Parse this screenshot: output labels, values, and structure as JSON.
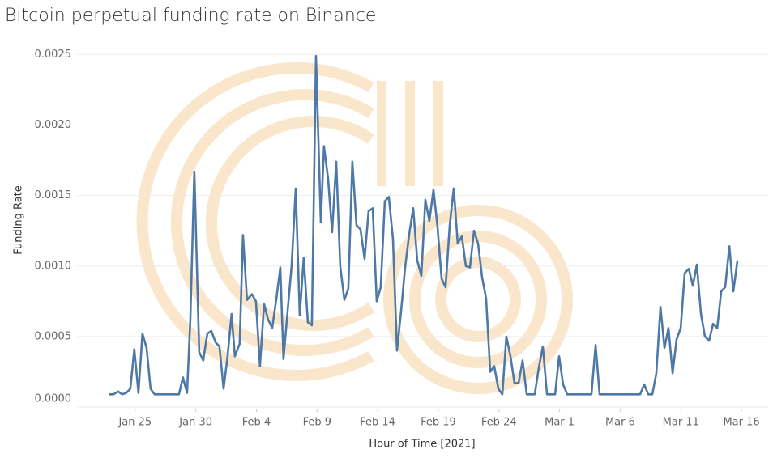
{
  "chart_data": {
    "type": "line",
    "title": "Bitcoin perpetual funding rate on Binance",
    "x_label": "Hour of Time [2021]",
    "y_label": "Funding Rate",
    "color": "#4e79a7",
    "grid": true,
    "xlim": [
      20.2,
      77.2
    ],
    "ylim": [
      0,
      0.0026
    ],
    "xticks": [
      {
        "value": 25,
        "label": "Jan 25"
      },
      {
        "value": 30,
        "label": "Jan 30"
      },
      {
        "value": 35,
        "label": "Feb 4"
      },
      {
        "value": 40,
        "label": "Feb 9"
      },
      {
        "value": 45,
        "label": "Feb 14"
      },
      {
        "value": 50,
        "label": "Feb 19"
      },
      {
        "value": 55,
        "label": "Feb 24"
      },
      {
        "value": 60,
        "label": "Mar 1"
      },
      {
        "value": 65,
        "label": "Mar 6"
      },
      {
        "value": 70,
        "label": "Mar 11"
      },
      {
        "value": 75,
        "label": "Mar 16"
      }
    ],
    "yticks": [
      {
        "value": 0,
        "label": "0.0000"
      },
      {
        "value": 0.0005,
        "label": "0.0005"
      },
      {
        "value": 0.001,
        "label": "0.0010"
      },
      {
        "value": 0.0015,
        "label": "0.0015"
      },
      {
        "value": 0.002,
        "label": "0.0020"
      },
      {
        "value": 0.0025,
        "label": "0.0025"
      }
    ],
    "x": [
      22.86,
      23.2,
      23.6,
      23.93,
      24.26,
      24.6,
      24.93,
      25.27,
      25.6,
      25.94,
      26.27,
      26.6,
      28.61,
      28.94,
      29.28,
      29.55,
      29.88,
      30.28,
      30.61,
      30.95,
      31.28,
      31.62,
      31.95,
      32.29,
      32.62,
      32.95,
      33.22,
      33.62,
      33.89,
      34.22,
      34.63,
      34.96,
      35.29,
      35.63,
      35.96,
      36.3,
      36.63,
      36.97,
      37.23,
      37.57,
      37.9,
      38.24,
      38.57,
      38.9,
      39.24,
      39.57,
      39.91,
      40.31,
      40.57,
      40.91,
      41.24,
      41.58,
      41.91,
      42.25,
      42.58,
      42.91,
      43.25,
      43.58,
      43.92,
      44.25,
      44.59,
      44.92,
      45.25,
      45.59,
      45.92,
      46.26,
      46.59,
      46.93,
      47.26,
      47.59,
      47.93,
      48.26,
      48.6,
      48.93,
      49.26,
      49.6,
      49.93,
      50.27,
      50.6,
      50.94,
      51.27,
      51.6,
      51.94,
      52.27,
      52.61,
      52.94,
      53.28,
      53.61,
      53.94,
      54.28,
      54.61,
      54.95,
      55.28,
      55.61,
      55.95,
      56.28,
      56.62,
      56.95,
      57.29,
      57.95,
      58.29,
      58.62,
      58.96,
      59.63,
      59.96,
      60.29,
      60.63,
      62.63,
      62.97,
      63.3,
      66.64,
      66.98,
      67.31,
      67.65,
      67.98,
      68.32,
      68.65,
      68.98,
      69.32,
      69.65,
      69.99,
      70.32,
      70.66,
      70.99,
      71.32,
      71.66,
      71.99,
      72.33,
      72.66,
      73,
      73.33,
      73.66,
      74,
      74.33,
      74.67
    ],
    "values": [
      9e-05,
      9e-05,
      0.00011,
      9e-05,
      0.0001,
      0.00013,
      0.00041,
      0.0001,
      0.00052,
      0.00042,
      0.00013,
      9e-05,
      9e-05,
      0.00021,
      0.0001,
      0.00062,
      0.00167,
      0.00039,
      0.00033,
      0.00052,
      0.00054,
      0.00046,
      0.00043,
      0.00013,
      0.00036,
      0.00066,
      0.00036,
      0.00045,
      0.00122,
      0.00076,
      0.0008,
      0.00075,
      0.00029,
      0.00073,
      0.00062,
      0.00056,
      0.00076,
      0.00099,
      0.00034,
      0.00068,
      0.001,
      0.00155,
      0.00065,
      0.00106,
      0.0006,
      0.00058,
      0.00249,
      0.00131,
      0.00185,
      0.00162,
      0.00124,
      0.00174,
      0.001,
      0.00076,
      0.00084,
      0.00174,
      0.00129,
      0.00126,
      0.00105,
      0.00139,
      0.00141,
      0.00075,
      0.00085,
      0.00146,
      0.00149,
      0.00119,
      0.0004,
      0.00068,
      0.00099,
      0.00122,
      0.00141,
      0.00104,
      0.00093,
      0.00147,
      0.00132,
      0.00154,
      0.00128,
      0.00091,
      0.00085,
      0.00129,
      0.00155,
      0.00116,
      0.00121,
      0.001,
      0.00099,
      0.00125,
      0.00116,
      0.00092,
      0.00077,
      0.00025,
      0.00029,
      0.00013,
      9e-05,
      0.0005,
      0.00036,
      0.00017,
      0.00017,
      0.00033,
      9e-05,
      9e-05,
      0.00028,
      0.00043,
      9e-05,
      9e-05,
      0.00036,
      0.00016,
      9e-05,
      9e-05,
      0.00044,
      9e-05,
      9e-05,
      0.00016,
      9e-05,
      9e-05,
      0.00024,
      0.00071,
      0.00042,
      0.00056,
      0.00024,
      0.00048,
      0.00056,
      0.00095,
      0.00098,
      0.00086,
      0.00101,
      0.00066,
      0.0005,
      0.00047,
      0.00059,
      0.00056,
      0.00082,
      0.00085,
      0.00114,
      0.00082,
      0.00104
    ]
  }
}
